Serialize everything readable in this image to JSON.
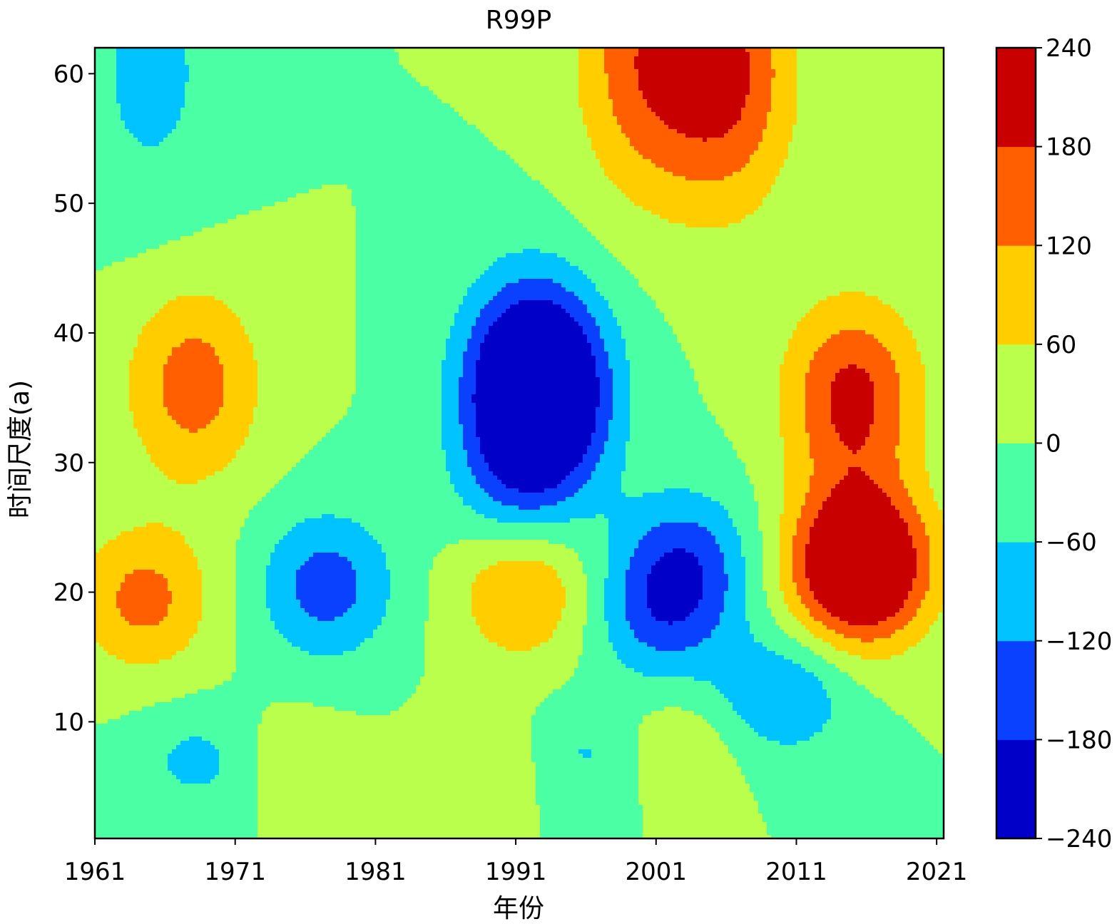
{
  "chart_data": {
    "type": "heatmap",
    "subtype": "filled-contour",
    "title": "R99P",
    "xlabel": "年份",
    "ylabel": "时间尺度(a)",
    "xlim": [
      1961,
      2021.5
    ],
    "ylim": [
      1,
      62
    ],
    "xticks": [
      1961,
      1971,
      1981,
      1991,
      2001,
      2011,
      2021
    ],
    "yticks": [
      10,
      20,
      30,
      40,
      50,
      60
    ],
    "colorbar": {
      "levels": [
        -240,
        -180,
        -120,
        -60,
        0,
        60,
        120,
        180,
        240
      ],
      "colors": [
        "#0000c8",
        "#0a41ff",
        "#00c3ff",
        "#4bffa5",
        "#b9ff4b",
        "#ffcd00",
        "#ff5f00",
        "#c80000"
      ]
    },
    "features": [
      {
        "center": [
          1977.5,
          20.5
        ],
        "value": -150
      },
      {
        "center": [
          1964.5,
          19.5
        ],
        "value": 140
      },
      {
        "center": [
          1968,
          36
        ],
        "value": 150
      },
      {
        "center": [
          1991.5,
          20.5
        ],
        "value": 140
      },
      {
        "center": [
          1992,
          37
        ],
        "value": -190
      },
      {
        "center": [
          1993,
          35
        ],
        "value": -215
      },
      {
        "center": [
          2003,
          22
        ],
        "value": -155
      },
      {
        "center": [
          2015,
          35
        ],
        "value": 200
      },
      {
        "center": [
          2016,
          22
        ],
        "value": 190
      },
      {
        "center": [
          2015,
          22
        ],
        "value": 160
      },
      {
        "center": [
          2006,
          60
        ],
        "value": 190
      },
      {
        "center": [
          2000,
          61
        ],
        "value": 150
      },
      {
        "center": [
          1965,
          60
        ],
        "value": -80
      },
      {
        "center": [
          1991,
          28
        ],
        "value": -90
      },
      {
        "center": [
          2001,
          18
        ],
        "value": -100
      },
      {
        "center": [
          2010,
          12
        ],
        "value": -120
      },
      {
        "center": [
          1969,
          7
        ],
        "value": -90
      },
      {
        "center": [
          1996,
          7.5
        ],
        "value": -85
      },
      {
        "center": [
          1974,
          7
        ],
        "value": 55
      },
      {
        "center": [
          1990,
          7
        ],
        "value": 55
      },
      {
        "center": [
          2002,
          8
        ],
        "value": 65
      }
    ]
  }
}
